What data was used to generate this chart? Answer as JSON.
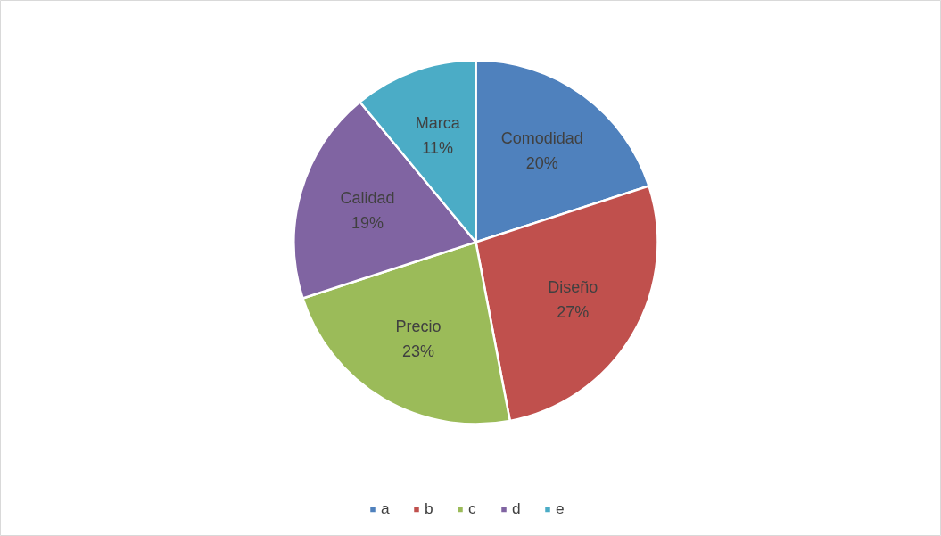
{
  "chart_data": {
    "type": "pie",
    "categories": [
      "a",
      "b",
      "c",
      "d",
      "e"
    ],
    "values": [
      20,
      27,
      23,
      19,
      11
    ],
    "colors": [
      "#4f81bd",
      "#c0504d",
      "#9bbb59",
      "#8064a2",
      "#4bacc6"
    ],
    "value_labels": [
      "Comodidad\n20%",
      "Diseño\n27%",
      "Precio\n23%",
      "Calidad\n19%",
      "Marca\n11%"
    ],
    "legend": "bottom"
  }
}
